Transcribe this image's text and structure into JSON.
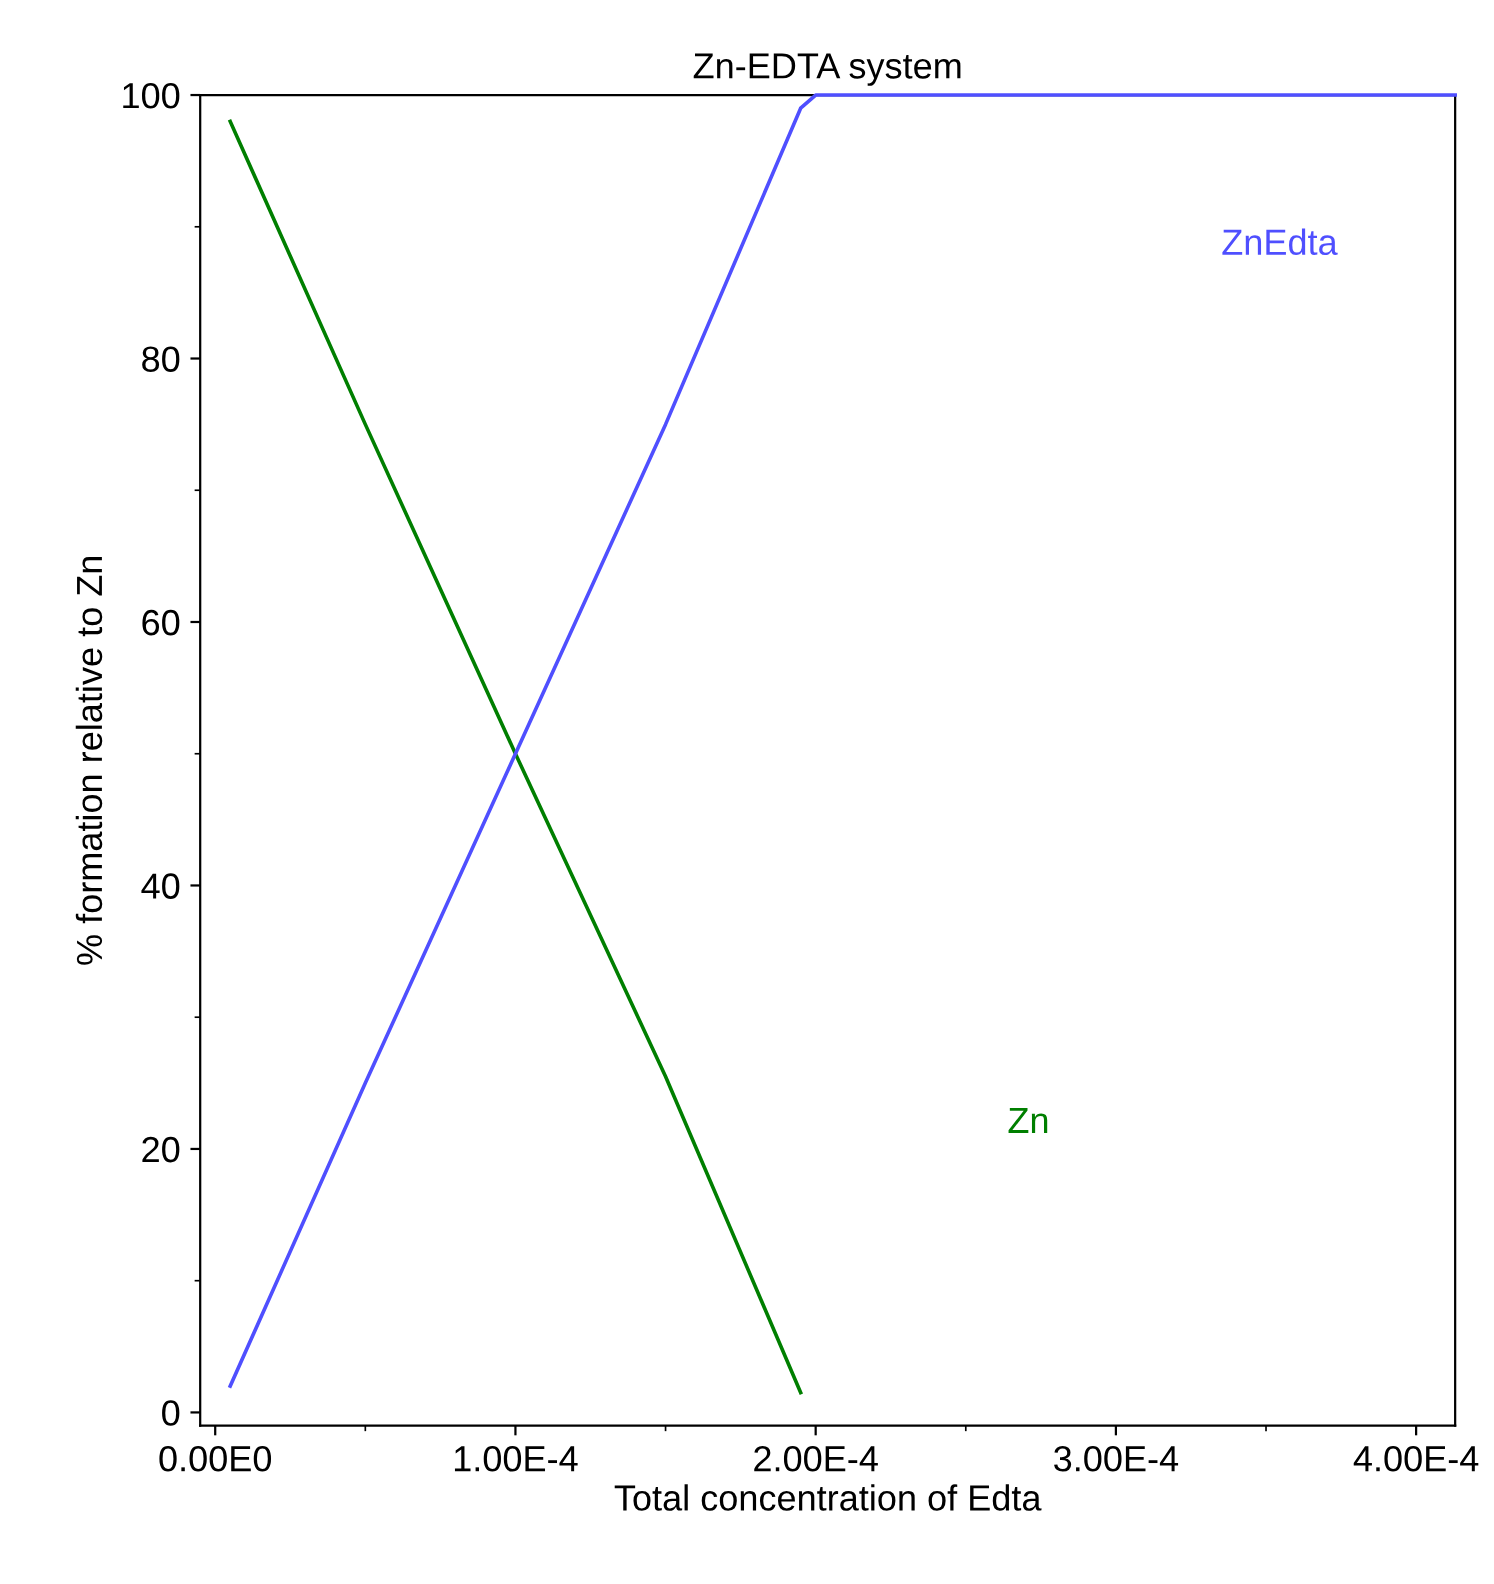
{
  "chart_data": {
    "type": "line",
    "title": "Zn-EDTA system",
    "xlabel": "Total concentration of Edta",
    "ylabel": "% formation relative to Zn",
    "xlim": [
      -5e-06,
      0.000413
    ],
    "ylim": [
      -1,
      100
    ],
    "xticks": [
      {
        "value": 0,
        "label": "0.00E0"
      },
      {
        "value": 0.0001,
        "label": "1.00E-4"
      },
      {
        "value": 0.0002,
        "label": "2.00E-4"
      },
      {
        "value": 0.0003,
        "label": "3.00E-4"
      },
      {
        "value": 0.0004,
        "label": "4.00E-4"
      }
    ],
    "yticks": [
      0,
      20,
      40,
      60,
      80,
      100
    ],
    "grid": false,
    "legend": false,
    "marker": "none",
    "line_style": "solid",
    "series": [
      {
        "name": "Zn",
        "color": "#007f00",
        "x": [
          5e-06,
          5e-05,
          0.0001,
          0.00015,
          0.000195
        ],
        "values": [
          98,
          75,
          50,
          25.5,
          1.5
        ]
      },
      {
        "name": "ZnEdta",
        "color": "#4f4fff",
        "x": [
          5e-06,
          5e-05,
          0.0001,
          0.00015,
          0.000195,
          0.0002,
          0.000413
        ],
        "values": [
          2,
          25,
          50,
          75,
          99,
          100,
          100
        ]
      }
    ]
  }
}
